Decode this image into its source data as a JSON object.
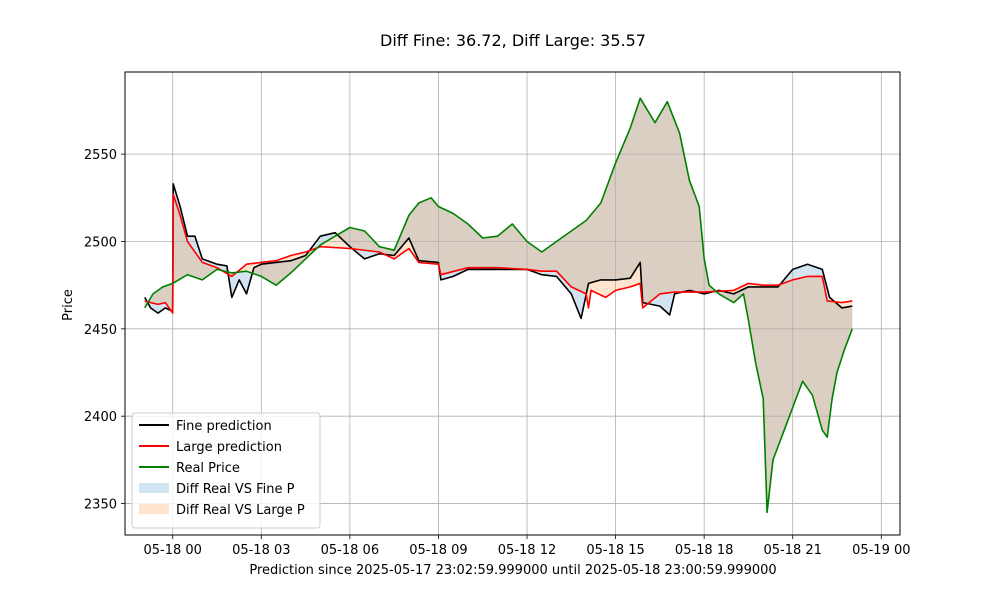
{
  "chart_data": {
    "type": "line",
    "title": "Diff Fine: 36.72, Diff Large: 35.57",
    "xlabel": "Prediction since 2025-05-17 23:02:59.999000 until 2025-05-18 23:00:59.999000",
    "ylabel": "Price",
    "x_unit": "time",
    "xlim": [
      "2025-05-17 22:23",
      "2025-05-19 00:38"
    ],
    "ylim": [
      2332,
      2597
    ],
    "x_ticks": [
      {
        "t": "2025-05-18 00:00",
        "label": "05-18 00"
      },
      {
        "t": "2025-05-18 03:00",
        "label": "05-18 03"
      },
      {
        "t": "2025-05-18 06:00",
        "label": "05-18 06"
      },
      {
        "t": "2025-05-18 09:00",
        "label": "05-18 09"
      },
      {
        "t": "2025-05-18 12:00",
        "label": "05-18 12"
      },
      {
        "t": "2025-05-18 15:00",
        "label": "05-18 15"
      },
      {
        "t": "2025-05-18 18:00",
        "label": "05-18 18"
      },
      {
        "t": "2025-05-18 21:00",
        "label": "05-18 21"
      },
      {
        "t": "2025-05-19 00:00",
        "label": "05-19 00"
      }
    ],
    "y_ticks": [
      2350,
      2400,
      2450,
      2500,
      2550
    ],
    "grid": true,
    "legend_position": "lower-left",
    "series": [
      {
        "name": "Fine prediction",
        "color": "#000000",
        "points": [
          [
            "2025-05-17 23:03",
            2468
          ],
          [
            "2025-05-17 23:15",
            2462
          ],
          [
            "2025-05-17 23:30",
            2459
          ],
          [
            "2025-05-17 23:45",
            2462
          ],
          [
            "2025-05-18 00:00",
            2460
          ],
          [
            "2025-05-18 00:01",
            2533
          ],
          [
            "2025-05-18 00:15",
            2520
          ],
          [
            "2025-05-18 00:30",
            2503
          ],
          [
            "2025-05-18 00:45",
            2503
          ],
          [
            "2025-05-18 01:00",
            2490
          ],
          [
            "2025-05-18 01:30",
            2487
          ],
          [
            "2025-05-18 01:50",
            2486
          ],
          [
            "2025-05-18 02:00",
            2468
          ],
          [
            "2025-05-18 02:15",
            2478
          ],
          [
            "2025-05-18 02:30",
            2470
          ],
          [
            "2025-05-18 02:45",
            2485
          ],
          [
            "2025-05-18 03:00",
            2487
          ],
          [
            "2025-05-18 03:30",
            2488
          ],
          [
            "2025-05-18 04:00",
            2489
          ],
          [
            "2025-05-18 04:30",
            2492
          ],
          [
            "2025-05-18 05:00",
            2503
          ],
          [
            "2025-05-18 05:30",
            2505
          ],
          [
            "2025-05-18 06:00",
            2497
          ],
          [
            "2025-05-18 06:30",
            2490
          ],
          [
            "2025-05-18 07:00",
            2493
          ],
          [
            "2025-05-18 07:30",
            2492
          ],
          [
            "2025-05-18 08:00",
            2502
          ],
          [
            "2025-05-18 08:20",
            2489
          ],
          [
            "2025-05-18 09:00",
            2488
          ],
          [
            "2025-05-18 09:05",
            2478
          ],
          [
            "2025-05-18 09:30",
            2480
          ],
          [
            "2025-05-18 10:00",
            2484
          ],
          [
            "2025-05-18 11:00",
            2484
          ],
          [
            "2025-05-18 12:00",
            2484
          ],
          [
            "2025-05-18 12:30",
            2481
          ],
          [
            "2025-05-18 13:00",
            2480
          ],
          [
            "2025-05-18 13:30",
            2470
          ],
          [
            "2025-05-18 13:50",
            2456
          ],
          [
            "2025-05-18 14:05",
            2476
          ],
          [
            "2025-05-18 14:30",
            2478
          ],
          [
            "2025-05-18 15:00",
            2478
          ],
          [
            "2025-05-18 15:30",
            2479
          ],
          [
            "2025-05-18 15:50",
            2488
          ],
          [
            "2025-05-18 15:55",
            2465
          ],
          [
            "2025-05-18 16:30",
            2463
          ],
          [
            "2025-05-18 16:50",
            2458
          ],
          [
            "2025-05-18 17:00",
            2470
          ],
          [
            "2025-05-18 17:30",
            2472
          ],
          [
            "2025-05-18 18:00",
            2470
          ],
          [
            "2025-05-18 18:30",
            2472
          ],
          [
            "2025-05-18 19:00",
            2470
          ],
          [
            "2025-05-18 19:30",
            2474
          ],
          [
            "2025-05-18 20:00",
            2474
          ],
          [
            "2025-05-18 20:30",
            2474
          ],
          [
            "2025-05-18 21:00",
            2484
          ],
          [
            "2025-05-18 21:30",
            2487
          ],
          [
            "2025-05-18 22:00",
            2484
          ],
          [
            "2025-05-18 22:15",
            2468
          ],
          [
            "2025-05-18 22:40",
            2462
          ],
          [
            "2025-05-18 23:01",
            2463
          ]
        ]
      },
      {
        "name": "Large prediction",
        "color": "#ff0000",
        "points": [
          [
            "2025-05-17 23:03",
            2466
          ],
          [
            "2025-05-17 23:15",
            2465
          ],
          [
            "2025-05-17 23:30",
            2464
          ],
          [
            "2025-05-17 23:45",
            2465
          ],
          [
            "2025-05-18 00:00",
            2459
          ],
          [
            "2025-05-18 00:01",
            2527
          ],
          [
            "2025-05-18 00:15",
            2515
          ],
          [
            "2025-05-18 00:30",
            2500
          ],
          [
            "2025-05-18 01:00",
            2488
          ],
          [
            "2025-05-18 01:30",
            2485
          ],
          [
            "2025-05-18 02:00",
            2480
          ],
          [
            "2025-05-18 02:30",
            2487
          ],
          [
            "2025-05-18 03:00",
            2488
          ],
          [
            "2025-05-18 03:30",
            2489
          ],
          [
            "2025-05-18 04:00",
            2492
          ],
          [
            "2025-05-18 04:30",
            2494
          ],
          [
            "2025-05-18 05:00",
            2497
          ],
          [
            "2025-05-18 06:00",
            2496
          ],
          [
            "2025-05-18 07:00",
            2494
          ],
          [
            "2025-05-18 07:30",
            2490
          ],
          [
            "2025-05-18 08:00",
            2496
          ],
          [
            "2025-05-18 08:20",
            2488
          ],
          [
            "2025-05-18 09:00",
            2487
          ],
          [
            "2025-05-18 09:05",
            2481
          ],
          [
            "2025-05-18 10:00",
            2485
          ],
          [
            "2025-05-18 11:00",
            2485
          ],
          [
            "2025-05-18 12:00",
            2484
          ],
          [
            "2025-05-18 12:30",
            2483
          ],
          [
            "2025-05-18 13:00",
            2483
          ],
          [
            "2025-05-18 13:30",
            2474
          ],
          [
            "2025-05-18 14:00",
            2470
          ],
          [
            "2025-05-18 14:05",
            2462
          ],
          [
            "2025-05-18 14:10",
            2472
          ],
          [
            "2025-05-18 14:40",
            2468
          ],
          [
            "2025-05-18 15:00",
            2472
          ],
          [
            "2025-05-18 15:30",
            2474
          ],
          [
            "2025-05-18 15:50",
            2476
          ],
          [
            "2025-05-18 15:55",
            2462
          ],
          [
            "2025-05-18 16:30",
            2470
          ],
          [
            "2025-05-18 17:00",
            2471
          ],
          [
            "2025-05-18 17:30",
            2471
          ],
          [
            "2025-05-18 18:00",
            2471
          ],
          [
            "2025-05-18 19:00",
            2472
          ],
          [
            "2025-05-18 19:30",
            2476
          ],
          [
            "2025-05-18 20:00",
            2475
          ],
          [
            "2025-05-18 20:30",
            2475
          ],
          [
            "2025-05-18 21:00",
            2478
          ],
          [
            "2025-05-18 21:30",
            2480
          ],
          [
            "2025-05-18 22:00",
            2480
          ],
          [
            "2025-05-18 22:10",
            2466
          ],
          [
            "2025-05-18 22:40",
            2465
          ],
          [
            "2025-05-18 23:01",
            2466
          ]
        ]
      },
      {
        "name": "Real Price",
        "color": "#008000",
        "points": [
          [
            "2025-05-17 23:03",
            2462
          ],
          [
            "2025-05-17 23:20",
            2470
          ],
          [
            "2025-05-17 23:40",
            2474
          ],
          [
            "2025-05-18 00:00",
            2476
          ],
          [
            "2025-05-18 00:30",
            2481
          ],
          [
            "2025-05-18 01:00",
            2478
          ],
          [
            "2025-05-18 01:30",
            2484
          ],
          [
            "2025-05-18 02:00",
            2482
          ],
          [
            "2025-05-18 02:30",
            2483
          ],
          [
            "2025-05-18 03:00",
            2480
          ],
          [
            "2025-05-18 03:30",
            2475
          ],
          [
            "2025-05-18 04:00",
            2482
          ],
          [
            "2025-05-18 04:30",
            2490
          ],
          [
            "2025-05-18 05:00",
            2498
          ],
          [
            "2025-05-18 05:30",
            2503
          ],
          [
            "2025-05-18 06:00",
            2508
          ],
          [
            "2025-05-18 06:30",
            2506
          ],
          [
            "2025-05-18 07:00",
            2497
          ],
          [
            "2025-05-18 07:30",
            2495
          ],
          [
            "2025-05-18 08:00",
            2515
          ],
          [
            "2025-05-18 08:20",
            2522
          ],
          [
            "2025-05-18 08:45",
            2525
          ],
          [
            "2025-05-18 09:00",
            2520
          ],
          [
            "2025-05-18 09:30",
            2516
          ],
          [
            "2025-05-18 10:00",
            2510
          ],
          [
            "2025-05-18 10:30",
            2502
          ],
          [
            "2025-05-18 11:00",
            2503
          ],
          [
            "2025-05-18 11:30",
            2510
          ],
          [
            "2025-05-18 12:00",
            2500
          ],
          [
            "2025-05-18 12:30",
            2494
          ],
          [
            "2025-05-18 13:00",
            2500
          ],
          [
            "2025-05-18 13:30",
            2506
          ],
          [
            "2025-05-18 14:00",
            2512
          ],
          [
            "2025-05-18 14:30",
            2522
          ],
          [
            "2025-05-18 15:00",
            2545
          ],
          [
            "2025-05-18 15:30",
            2565
          ],
          [
            "2025-05-18 15:50",
            2582
          ],
          [
            "2025-05-18 16:20",
            2568
          ],
          [
            "2025-05-18 16:45",
            2580
          ],
          [
            "2025-05-18 17:10",
            2562
          ],
          [
            "2025-05-18 17:30",
            2535
          ],
          [
            "2025-05-18 17:50",
            2520
          ],
          [
            "2025-05-18 18:00",
            2490
          ],
          [
            "2025-05-18 18:10",
            2475
          ],
          [
            "2025-05-18 18:30",
            2470
          ],
          [
            "2025-05-18 19:00",
            2465
          ],
          [
            "2025-05-18 19:20",
            2470
          ],
          [
            "2025-05-18 19:30",
            2455
          ],
          [
            "2025-05-18 19:45",
            2430
          ],
          [
            "2025-05-18 20:00",
            2410
          ],
          [
            "2025-05-18 20:08",
            2345
          ],
          [
            "2025-05-18 20:20",
            2375
          ],
          [
            "2025-05-18 20:40",
            2390
          ],
          [
            "2025-05-18 21:00",
            2405
          ],
          [
            "2025-05-18 21:20",
            2420
          ],
          [
            "2025-05-18 21:40",
            2412
          ],
          [
            "2025-05-18 22:00",
            2392
          ],
          [
            "2025-05-18 22:10",
            2388
          ],
          [
            "2025-05-18 22:20",
            2410
          ],
          [
            "2025-05-18 22:30",
            2425
          ],
          [
            "2025-05-18 22:45",
            2438
          ],
          [
            "2025-05-18 23:01",
            2450
          ]
        ]
      }
    ],
    "fills": [
      {
        "name": "Diff Real VS Fine P",
        "between": [
          "Real Price",
          "Fine prediction"
        ],
        "color": "#1f77b4",
        "alpha": 0.2
      },
      {
        "name": "Diff Real VS Large P",
        "between": [
          "Real Price",
          "Large prediction"
        ],
        "color": "#ff7f0e",
        "alpha": 0.2
      }
    ]
  }
}
